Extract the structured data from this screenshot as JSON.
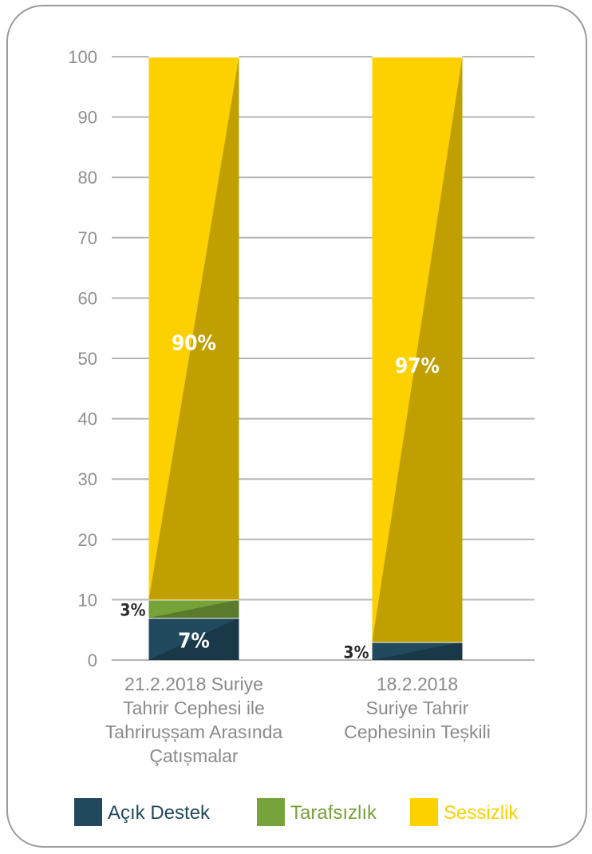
{
  "chart_data": {
    "type": "bar",
    "stacked": true,
    "categories": [
      [
        "21.2.2018 Suriye",
        "Tahrir Cephesi ile",
        "Tahrirușșam Arasında",
        "Çatıșmalar"
      ],
      [
        "18.2.2018",
        "Suriye Tahrir",
        "Cephesinin Teșkili"
      ]
    ],
    "series": [
      {
        "name": "Açık Destek",
        "color": "#214a5f",
        "values": [
          7,
          3
        ],
        "labels": [
          "7%",
          "3%"
        ]
      },
      {
        "name": "Tarafsızlık",
        "color": "#76a23a",
        "values": [
          3,
          0
        ],
        "labels": [
          "3%",
          ""
        ]
      },
      {
        "name": "Sessizlik",
        "color": "#fdd100",
        "values": [
          90,
          97
        ],
        "labels": [
          "90%",
          "97%"
        ]
      }
    ],
    "y_ticks": [
      "0",
      "10",
      "20",
      "30",
      "40",
      "50",
      "60",
      "70",
      "80",
      "90",
      "100"
    ],
    "ylim": [
      0,
      100
    ],
    "grid": true,
    "legend_position": "bottom"
  }
}
